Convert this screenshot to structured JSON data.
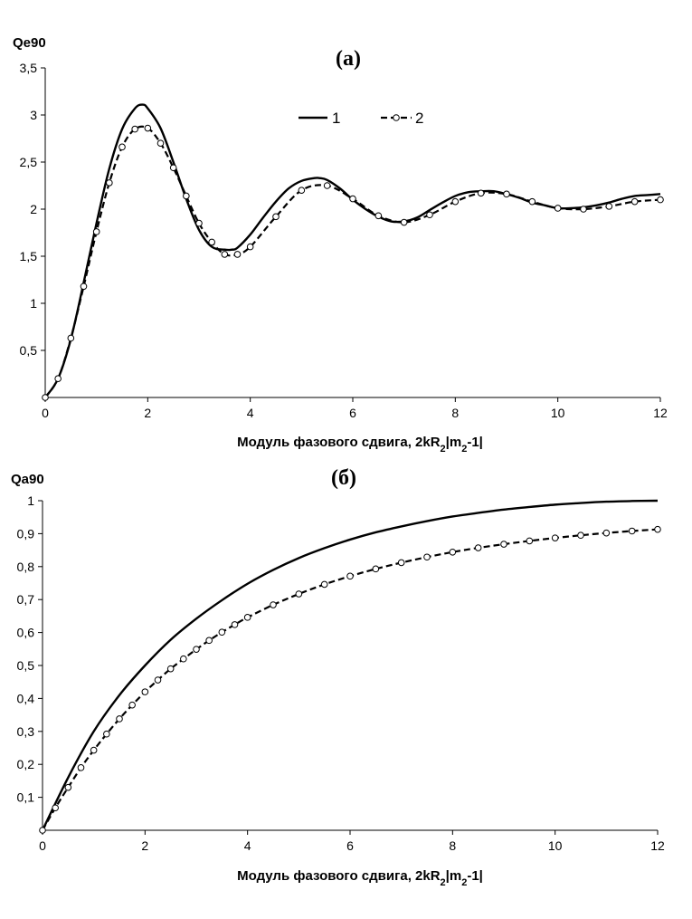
{
  "chart_data": [
    {
      "type": "line",
      "panel_label": "(а)",
      "ylabel": "Qe90",
      "xlabel_prefix": "Модуль фазового сдвига, 2kR",
      "xlabel_sub1": "2",
      "xlabel_mid": "|m",
      "xlabel_sub2": "2",
      "xlabel_suffix": "-1|",
      "xlim": [
        0,
        12
      ],
      "ylim": [
        0,
        3.5
      ],
      "xticks": [
        "0",
        "2",
        "4",
        "6",
        "8",
        "10",
        "12"
      ],
      "yticks": [
        "0,5",
        "1",
        "1,5",
        "2",
        "2,5",
        "3",
        "3,5"
      ],
      "legend_position": "top-right",
      "series": [
        {
          "name": "1",
          "style": "solid",
          "x": [
            0,
            0.25,
            0.5,
            0.75,
            1.0,
            1.25,
            1.5,
            1.75,
            1.9,
            2.0,
            2.25,
            2.5,
            2.75,
            3.0,
            3.25,
            3.5,
            3.65,
            3.75,
            4.0,
            4.25,
            4.5,
            4.75,
            5.0,
            5.25,
            5.35,
            5.5,
            5.75,
            6.0,
            6.25,
            6.5,
            6.75,
            7.0,
            7.25,
            7.5,
            7.75,
            8.0,
            8.25,
            8.5,
            8.75,
            9.0,
            9.25,
            9.5,
            9.75,
            10.0,
            10.25,
            10.5,
            10.75,
            11.0,
            11.25,
            11.5,
            11.75,
            12.0
          ],
          "y": [
            0,
            0.2,
            0.62,
            1.22,
            1.85,
            2.43,
            2.85,
            3.07,
            3.11,
            3.07,
            2.86,
            2.5,
            2.11,
            1.78,
            1.6,
            1.57,
            1.57,
            1.59,
            1.73,
            1.91,
            2.08,
            2.22,
            2.3,
            2.33,
            2.33,
            2.31,
            2.22,
            2.1,
            2.0,
            1.92,
            1.87,
            1.87,
            1.91,
            1.99,
            2.07,
            2.14,
            2.18,
            2.19,
            2.19,
            2.16,
            2.12,
            2.07,
            2.04,
            2.01,
            2.01,
            2.02,
            2.04,
            2.07,
            2.11,
            2.14,
            2.15,
            2.16
          ]
        },
        {
          "name": "2",
          "style": "dashed-circles",
          "x": [
            0,
            0.25,
            0.5,
            0.75,
            1.0,
            1.25,
            1.5,
            1.75,
            2.0,
            2.25,
            2.5,
            2.75,
            3.0,
            3.25,
            3.5,
            3.75,
            4.0,
            4.5,
            5.0,
            5.5,
            6.0,
            6.5,
            7.0,
            7.5,
            8.0,
            8.5,
            9.0,
            9.5,
            10.0,
            10.5,
            11.0,
            11.5,
            12.0
          ],
          "y": [
            0,
            0.2,
            0.63,
            1.18,
            1.76,
            2.28,
            2.66,
            2.85,
            2.86,
            2.7,
            2.44,
            2.14,
            1.85,
            1.65,
            1.52,
            1.52,
            1.6,
            1.92,
            2.2,
            2.25,
            2.11,
            1.93,
            1.86,
            1.94,
            2.08,
            2.17,
            2.16,
            2.08,
            2.01,
            2.0,
            2.03,
            2.08,
            2.1
          ]
        }
      ]
    },
    {
      "type": "line",
      "panel_label": "(б)",
      "ylabel": "Qa90",
      "xlabel_prefix": "Модуль фазового сдвига, 2kR",
      "xlabel_sub1": "2",
      "xlabel_mid": "|m",
      "xlabel_sub2": "2",
      "xlabel_suffix": "-1|",
      "xlim": [
        0,
        12
      ],
      "ylim": [
        0,
        1
      ],
      "xticks": [
        "0",
        "2",
        "4",
        "6",
        "8",
        "10",
        "12"
      ],
      "yticks": [
        "0,1",
        "0,2",
        "0,3",
        "0,4",
        "0,5",
        "0,6",
        "0,7",
        "0,8",
        "0,9",
        "1"
      ],
      "series": [
        {
          "name": "1",
          "style": "solid",
          "x": [
            0,
            0.5,
            1,
            1.5,
            2,
            2.5,
            3,
            3.5,
            4,
            4.5,
            5,
            5.5,
            6,
            6.5,
            7,
            7.5,
            8,
            8.5,
            9,
            9.5,
            10,
            10.5,
            11,
            11.5,
            12
          ],
          "y": [
            0,
            0.16,
            0.3,
            0.41,
            0.5,
            0.578,
            0.642,
            0.698,
            0.748,
            0.79,
            0.826,
            0.856,
            0.882,
            0.904,
            0.922,
            0.938,
            0.952,
            0.963,
            0.973,
            0.981,
            0.988,
            0.993,
            0.997,
            0.999,
            1.0
          ]
        },
        {
          "name": "2",
          "style": "dashed-circles",
          "x": [
            0,
            0.25,
            0.5,
            0.75,
            1,
            1.25,
            1.5,
            1.75,
            2,
            2.25,
            2.5,
            2.75,
            3,
            3.25,
            3.5,
            3.75,
            4,
            4.5,
            5,
            5.5,
            6,
            6.5,
            7,
            7.5,
            8,
            8.5,
            9,
            9.5,
            10,
            10.5,
            11,
            11.5,
            12
          ],
          "y": [
            0,
            0.068,
            0.13,
            0.19,
            0.243,
            0.292,
            0.338,
            0.38,
            0.42,
            0.456,
            0.49,
            0.52,
            0.549,
            0.576,
            0.601,
            0.624,
            0.646,
            0.684,
            0.717,
            0.746,
            0.771,
            0.793,
            0.812,
            0.829,
            0.844,
            0.857,
            0.868,
            0.878,
            0.887,
            0.895,
            0.902,
            0.908,
            0.913
          ]
        }
      ]
    }
  ]
}
